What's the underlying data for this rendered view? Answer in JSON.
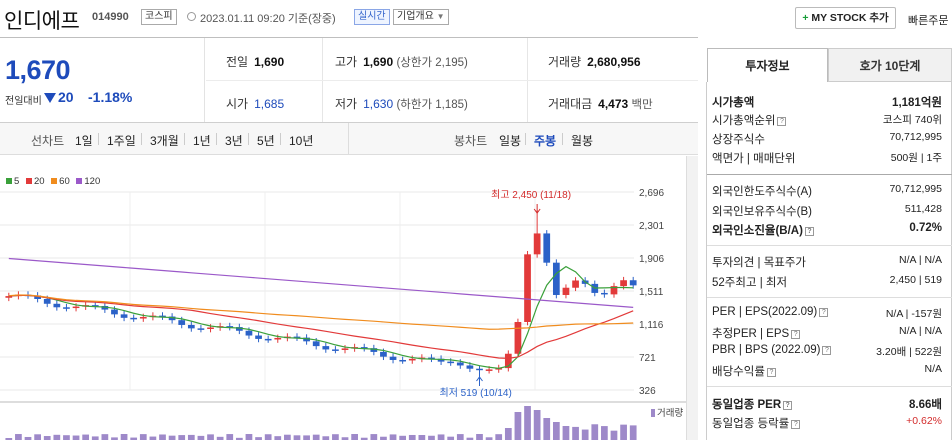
{
  "header": {
    "stock_name": "인디에프",
    "stock_code": "014990",
    "market_badge": "코스피",
    "datetime": "2023.01.11 09:20 기준(장중)",
    "realtime_badge": "실시간",
    "company_badge": "기업개요",
    "mystock_label": "MY STOCK 추가",
    "quick_order_label": "빠른주문"
  },
  "price": {
    "current": "1,670",
    "change_label": "전일대비",
    "change_value": "20",
    "change_pct": "-1.18%"
  },
  "stats": {
    "prev_close_label": "전일",
    "prev_close": "1,690",
    "high_label": "고가",
    "high": "1,690",
    "upper_limit": "(상한가 2,195)",
    "volume_label": "거래량",
    "volume": "2,680,956",
    "open_label": "시가",
    "open": "1,685",
    "low_label": "저가",
    "low": "1,630",
    "lower_limit": "(하한가 1,185)",
    "amount_label": "거래대금",
    "amount": "4,473",
    "amount_unit": "백만"
  },
  "period_bar": {
    "line_label": "선차트",
    "line_options": [
      "1일",
      "1주일",
      "3개월",
      "1년",
      "3년",
      "5년",
      "10년"
    ],
    "candle_label": "봉차트",
    "candle_options": [
      "일봉",
      "주봉",
      "월봉"
    ],
    "active_candle": "주봉"
  },
  "chart_data": {
    "type": "candlestick",
    "legend": [
      {
        "label": "5",
        "color": "#3aa03a"
      },
      {
        "label": "20",
        "color": "#e23a3a"
      },
      {
        "label": "60",
        "color": "#f08c1e"
      },
      {
        "label": "120",
        "color": "#9b59c9"
      }
    ],
    "y_ticks": [
      "2,696",
      "2,301",
      "1,906",
      "1,511",
      "1,116",
      "721",
      "326"
    ],
    "ylim": [
      326,
      2696
    ],
    "annotation_high": "최고 2,450 (11/18)",
    "annotation_low": "최저 519 (10/14)",
    "volume_label": "거래량",
    "up_color": "#e23a3a",
    "down_color": "#2b62c8"
  },
  "side": {
    "tab_invest": "투자정보",
    "tab_order": "호가 10단계",
    "market_cap_label": "시가총액",
    "market_cap": "1,181억원",
    "market_cap_rank_label": "시가총액순위",
    "market_cap_rank": "코스피 740위",
    "shares_label": "상장주식수",
    "shares": "70,712,995",
    "par_label": "액면가 | 매매단위",
    "par": "500원 | 1주",
    "foreign_limit_label": "외국인한도주식수(A)",
    "foreign_limit": "70,712,995",
    "foreign_hold_label": "외국인보유주식수(B)",
    "foreign_hold": "511,428",
    "foreign_ratio_label": "외국인소진율(B/A)",
    "foreign_ratio": "0.72%",
    "opinion_label": "투자의견 | 목표주가",
    "opinion": "N/A | N/A",
    "week52_label": "52주최고 | 최저",
    "week52": "2,450 | 519",
    "per_label": "PER | EPS(2022.09)",
    "per": "N/A | -157원",
    "est_per_label": "추정PER | EPS",
    "est_per": "N/A | N/A",
    "pbr_label": "PBR | BPS (2022.09)",
    "pbr": "3.20배 | 522원",
    "dividend_label": "배당수익률",
    "dividend": "N/A",
    "sector_per_label": "동일업종 PER",
    "sector_per": "8.66배",
    "sector_rate_label": "동일업종 등락률",
    "sector_rate": "+0.62%"
  }
}
